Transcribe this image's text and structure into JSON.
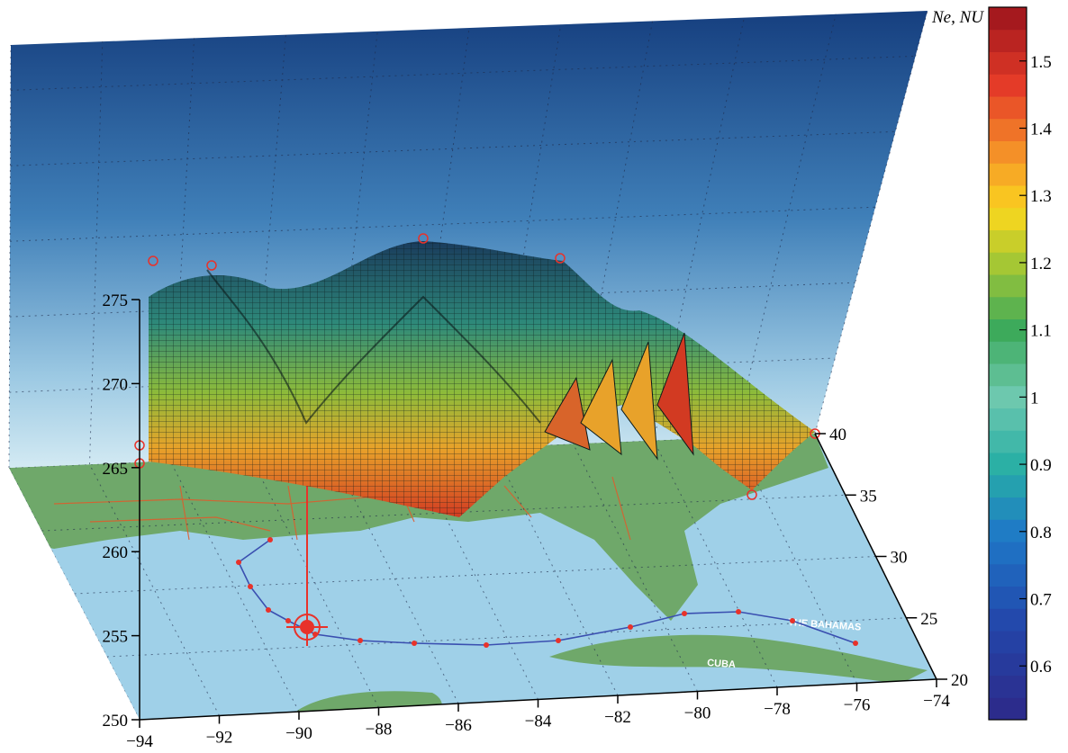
{
  "chart_data": {
    "type": "surface3d",
    "colorbar": {
      "title": "Ne, NU",
      "min": 0.52,
      "max": 1.58,
      "ticks": [
        0.6,
        0.7,
        0.8,
        0.9,
        1,
        1.1,
        1.2,
        1.3,
        1.4,
        1.5
      ]
    },
    "x_axis": {
      "ticks": [
        -94,
        -92,
        -90,
        -88,
        -86,
        -84,
        -82,
        -80,
        -78,
        -76,
        -74
      ],
      "range": [
        -94,
        -74
      ]
    },
    "y_axis": {
      "ticks": [
        20,
        25,
        30,
        35,
        40
      ],
      "range": [
        20,
        40
      ]
    },
    "z_axis": {
      "ticks": [
        250,
        255,
        260,
        265,
        270,
        275
      ],
      "range": [
        250,
        275
      ]
    },
    "map_labels": [
      "THE BAHAMAS",
      "CUBA"
    ],
    "grid": true,
    "colors": {
      "sky_top": "#163f7f",
      "sky_bottom": "#c6e2ef",
      "ocean": "#9fd0e8",
      "land": "#6fa86a",
      "track": "#3a4fb0",
      "marker": "#e8322a"
    }
  }
}
